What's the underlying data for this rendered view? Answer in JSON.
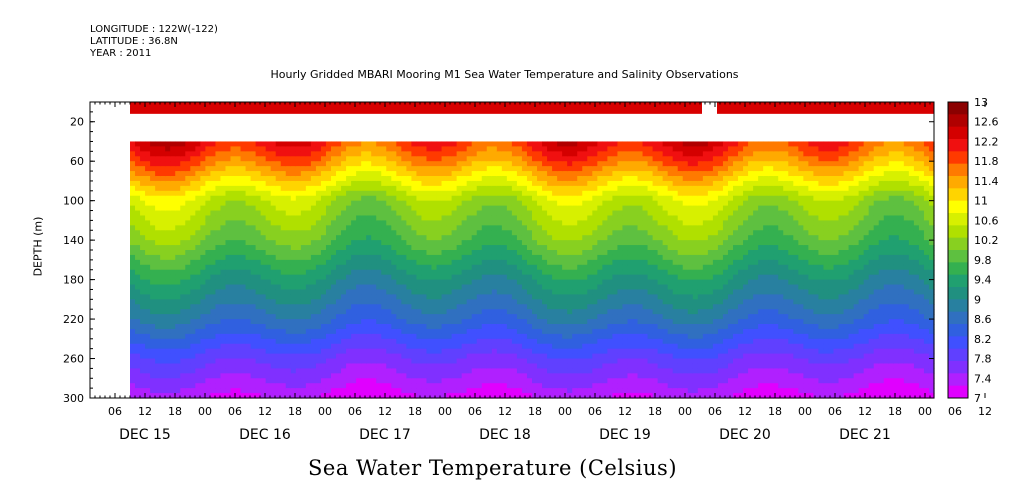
{
  "header": {
    "longitude": "LONGITUDE : 122W(-122)",
    "latitude": "LATITUDE : 36.8N",
    "year": "YEAR : 2011"
  },
  "chart_data": {
    "type": "heatmap",
    "title": "Hourly Gridded MBARI Mooring M1 Sea Water Temperature and Salinity Observations",
    "xlabel": "",
    "ylabel": "DEPTH (m)",
    "bottom_label": "Sea Water Temperature (Celsius)",
    "ylim": [
      300,
      0
    ],
    "y_ticks": [
      20,
      60,
      100,
      140,
      180,
      220,
      260,
      300
    ],
    "hour_tick_labels": [
      "06",
      "12",
      "18",
      "00",
      "06",
      "12",
      "18",
      "00",
      "06",
      "12",
      "18",
      "00",
      "06",
      "12",
      "18",
      "00",
      "06",
      "12",
      "18",
      "00",
      "06",
      "12",
      "18",
      "00",
      "06",
      "12",
      "18",
      "00",
      "06",
      "12",
      "18",
      "00"
    ],
    "day_labels": [
      "DEC 15",
      "DEC 16",
      "DEC 17",
      "DEC 18",
      "DEC 19",
      "DEC 20",
      "DEC 21"
    ],
    "colorbar": {
      "levels": [
        13,
        12.6,
        12.2,
        11.8,
        11.4,
        11,
        10.6,
        10.2,
        9.8,
        9.4,
        9,
        8.6,
        8.2,
        7.8,
        7.4,
        7
      ],
      "colors": [
        "#8b0000",
        "#b00000",
        "#d40000",
        "#f01010",
        "#ff3a00",
        "#ff7a00",
        "#ffaa00",
        "#ffd400",
        "#ffff00",
        "#d7f000",
        "#b0e000",
        "#88d020",
        "#5ec040",
        "#34b050",
        "#20a070",
        "#209080",
        "#2880a0",
        "#3070c0",
        "#3060e0",
        "#4050ff",
        "#6040ff",
        "#8030ff",
        "#b020ff",
        "#e000ff"
      ]
    },
    "surface_band": {
      "depth_top": 0,
      "depth_bottom": 12,
      "value": 12.8,
      "gap_days": [
        "DEC 20"
      ]
    },
    "upper_no_data_depth": [
      12,
      40
    ],
    "profile_depths": [
      40,
      60,
      80,
      100,
      140,
      180,
      220,
      260,
      300
    ],
    "profile_values_mean": [
      12.1,
      11.6,
      11.0,
      10.4,
      9.9,
      9.2,
      8.6,
      7.8,
      7.2
    ]
  }
}
